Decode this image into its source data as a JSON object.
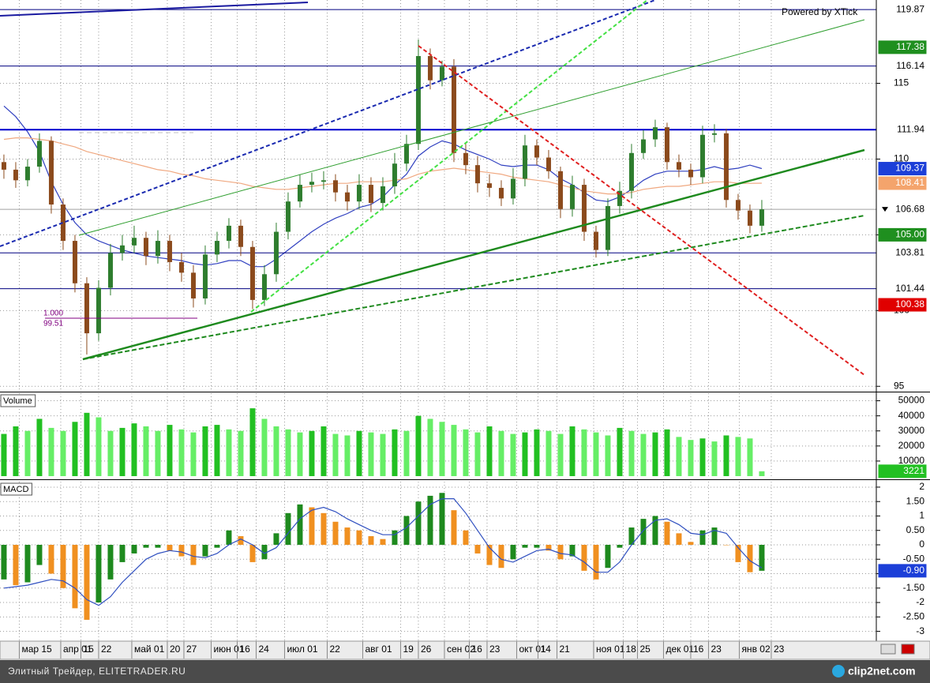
{
  "chart_data": [
    {
      "type": "candlestick",
      "watermark": "Powered by XTick",
      "x": [
        0,
        1,
        2,
        3,
        4,
        5,
        6,
        7,
        8,
        9,
        10,
        11,
        12,
        13,
        14,
        15,
        16,
        17,
        18,
        19,
        20,
        21,
        22,
        23,
        24,
        25,
        26,
        27,
        28,
        29,
        30,
        31,
        32,
        33,
        34,
        35,
        36,
        37,
        38,
        39,
        40,
        41,
        42,
        43,
        44,
        45,
        46,
        47,
        48,
        49,
        50,
        51,
        52,
        53,
        54,
        55,
        56,
        57,
        58,
        59,
        60,
        61,
        62,
        63,
        64
      ],
      "open": [
        109.8,
        109.3,
        108.6,
        109.5,
        111.2,
        107.0,
        104.6,
        101.8,
        98.5,
        101.5,
        103.8,
        104.3,
        104.8,
        103.6,
        104.6,
        103.2,
        102.5,
        100.8,
        103.7,
        104.6,
        105.6,
        104.2,
        100.7,
        102.4,
        105.2,
        107.2,
        108.3,
        108.5,
        108.6,
        107.8,
        107.2,
        108.3,
        107.1,
        108.2,
        109.7,
        111.0,
        116.8,
        115.2,
        116.1,
        110.4,
        109.6,
        108.4,
        108.1,
        107.4,
        108.7,
        110.9,
        110.1,
        109.2,
        106.7,
        108.3,
        105.2,
        104.0,
        106.9,
        107.9,
        110.4,
        111.3,
        112.1,
        109.8,
        109.3,
        108.8,
        111.6,
        111.7,
        107.3,
        106.6,
        105.6
      ],
      "high": [
        110.3,
        109.8,
        110.0,
        111.7,
        111.5,
        107.4,
        105.0,
        102.2,
        102.0,
        104.4,
        105.0,
        105.6,
        105.2,
        105.3,
        105.0,
        103.8,
        103.0,
        104.3,
        105.2,
        106.1,
        106.0,
        104.6,
        103.0,
        105.8,
        107.8,
        109.0,
        109.1,
        109.2,
        109.0,
        108.3,
        109.0,
        108.8,
        108.8,
        110.4,
        111.6,
        117.9,
        117.3,
        116.5,
        116.6,
        111.0,
        110.2,
        109.0,
        108.6,
        109.4,
        111.6,
        111.3,
        110.6,
        109.5,
        108.9,
        108.7,
        105.6,
        107.4,
        108.5,
        111.0,
        111.9,
        112.6,
        112.4,
        110.3,
        109.7,
        112.2,
        112.3,
        112.0,
        107.7,
        107.0,
        107.3
      ],
      "low": [
        108.7,
        108.1,
        108.2,
        109.1,
        106.4,
        104.0,
        101.2,
        97.1,
        98.0,
        101.0,
        103.3,
        103.8,
        103.0,
        103.1,
        102.6,
        101.9,
        100.2,
        100.4,
        103.2,
        104.1,
        103.6,
        100.1,
        100.3,
        101.9,
        104.7,
        106.8,
        107.8,
        108.0,
        107.2,
        106.6,
        106.7,
        106.5,
        106.6,
        107.7,
        109.2,
        110.6,
        114.6,
        114.8,
        109.8,
        109.0,
        107.8,
        107.5,
        106.9,
        107.0,
        108.2,
        109.6,
        108.7,
        106.1,
        106.2,
        104.6,
        103.5,
        103.6,
        106.4,
        107.4,
        110.0,
        110.8,
        109.3,
        108.8,
        108.3,
        108.4,
        111.1,
        106.8,
        106.0,
        105.1,
        105.2
      ],
      "close": [
        109.3,
        108.6,
        109.5,
        111.2,
        107.0,
        104.6,
        101.8,
        98.5,
        101.5,
        103.8,
        104.3,
        104.8,
        103.6,
        104.6,
        103.2,
        102.5,
        100.8,
        103.7,
        104.6,
        105.6,
        104.2,
        100.7,
        102.4,
        105.2,
        107.2,
        108.3,
        108.5,
        108.6,
        107.8,
        107.2,
        108.3,
        107.1,
        108.2,
        109.7,
        111.0,
        116.8,
        115.2,
        116.1,
        110.4,
        109.6,
        108.4,
        108.1,
        107.4,
        108.7,
        110.9,
        110.1,
        109.2,
        106.7,
        108.3,
        105.2,
        104.0,
        106.9,
        107.9,
        110.4,
        111.3,
        112.1,
        109.8,
        109.3,
        108.8,
        111.6,
        111.7,
        107.3,
        106.6,
        105.6,
        106.68
      ],
      "up_color": "#2e7d2e",
      "down_color": "#8b4a1c",
      "overlays": [
        {
          "color": "#3040c0",
          "values": [
            113.5,
            112.8,
            111.8,
            110.5,
            108.5,
            107.0,
            105.8,
            105.0,
            104.6,
            104.3,
            104.0,
            103.8,
            103.6,
            103.5,
            103.4,
            103.3,
            103.1,
            103.0,
            103.1,
            103.3,
            103.3,
            102.9,
            102.9,
            103.4,
            104.0,
            104.6,
            105.2,
            105.7,
            106.1,
            106.4,
            106.8,
            107.0,
            107.5,
            108.3,
            109.0,
            110.2,
            110.8,
            111.2,
            111.0,
            110.6,
            110.3,
            110.0,
            109.6,
            109.5,
            109.6,
            109.6,
            109.3,
            108.7,
            108.3,
            107.8,
            107.3,
            107.2,
            107.5,
            108.0,
            108.6,
            109.0,
            109.2,
            109.2,
            109.2,
            109.3,
            109.5,
            109.3,
            109.4,
            109.6,
            109.37
          ]
        },
        {
          "color": "#f0a880",
          "values": [
            111.3,
            111.4,
            111.4,
            111.3,
            111.2,
            111.0,
            110.8,
            110.5,
            110.3,
            110.1,
            109.9,
            109.7,
            109.5,
            109.3,
            109.2,
            109.0,
            108.9,
            108.7,
            108.6,
            108.5,
            108.4,
            108.2,
            108.1,
            108.0,
            108.0,
            108.1,
            108.2,
            108.3,
            108.4,
            108.4,
            108.5,
            108.5,
            108.5,
            108.6,
            108.7,
            109.0,
            109.2,
            109.3,
            109.4,
            109.3,
            109.2,
            109.1,
            109.0,
            108.8,
            108.7,
            108.6,
            108.5,
            108.3,
            108.1,
            107.9,
            107.8,
            107.7,
            107.7,
            107.8,
            108.0,
            108.1,
            108.2,
            108.2,
            108.3,
            108.4,
            108.5,
            108.5,
            108.4,
            108.4,
            108.41
          ]
        }
      ],
      "xlim": [
        -0.33,
        73.67
      ],
      "xticks": [
        {
          "value": 1.3,
          "label": "мар 15"
        },
        {
          "value": 4.8,
          "label": "апр 01"
        },
        {
          "value": 6.5,
          "label": "15"
        },
        {
          "value": 8,
          "label": "22"
        },
        {
          "value": 10.8,
          "label": "май 01"
        },
        {
          "value": 13.8,
          "label": "20"
        },
        {
          "value": 15.2,
          "label": "27"
        },
        {
          "value": 17.5,
          "label": "июн 01"
        },
        {
          "value": 19.7,
          "label": "16"
        },
        {
          "value": 21.3,
          "label": "24"
        },
        {
          "value": 23.7,
          "label": "июл 01"
        },
        {
          "value": 27.3,
          "label": "22"
        },
        {
          "value": 30.3,
          "label": "авг 01"
        },
        {
          "value": 33.5,
          "label": "19"
        },
        {
          "value": 35,
          "label": "26"
        },
        {
          "value": 37.2,
          "label": "сен 02"
        },
        {
          "value": 39.3,
          "label": "16"
        },
        {
          "value": 40.8,
          "label": "23"
        },
        {
          "value": 43.3,
          "label": "окт 01"
        },
        {
          "value": 45.1,
          "label": "14"
        },
        {
          "value": 46.7,
          "label": "21"
        },
        {
          "value": 49.8,
          "label": "ноя 01"
        },
        {
          "value": 52.3,
          "label": "18"
        },
        {
          "value": 53.5,
          "label": "25"
        },
        {
          "value": 55.7,
          "label": "дек 01"
        },
        {
          "value": 58,
          "label": "16"
        },
        {
          "value": 59.5,
          "label": "23"
        },
        {
          "value": 62.1,
          "label": "янв 02"
        },
        {
          "value": 64.8,
          "label": "23"
        }
      ],
      "ylim": [
        94.7,
        120.5
      ],
      "yticks": [
        95,
        100,
        105,
        110,
        115
      ],
      "grid": true,
      "levels": [
        {
          "value": 119.87,
          "bg": "#ffffff",
          "fg": "#000000",
          "line": "#000080",
          "line_width": 1
        },
        {
          "value": 117.38,
          "bg": "#1f8f1f",
          "fg": "#ffffff"
        },
        {
          "value": 116.14,
          "bg": "#ffffff",
          "fg": "#000000",
          "line": "#000080",
          "line_width": 1
        },
        {
          "value": 111.94,
          "bg": "#ffffff",
          "fg": "#000000",
          "line": "#0000cd",
          "line_width": 2
        },
        {
          "value": 109.37,
          "bg": "#1c3fd8",
          "fg": "#ffffff"
        },
        {
          "value": 108.41,
          "bg": "#f4a46c",
          "fg": "#ffffff"
        },
        {
          "value": 106.68,
          "bg": "#ffffff",
          "fg": "#000000",
          "line": "#a0a0a0",
          "line_width": 1,
          "current": true
        },
        {
          "value": 105,
          "label": "105.00",
          "bg": "#1f8f1f",
          "fg": "#ffffff"
        },
        {
          "value": 103.81,
          "bg": "#ffffff",
          "fg": "#000000",
          "line": "#000080",
          "line_width": 1
        },
        {
          "value": 101.44,
          "bg": "#ffffff",
          "fg": "#000000",
          "line": "#000080",
          "line_width": 1
        },
        {
          "value": 100.38,
          "bg": "#e00000",
          "fg": "#ffffff"
        }
      ],
      "fib_labels": [
        {
          "value": 1,
          "label": "1.000"
        },
        99.51
      ]
    },
    {
      "type": "volume",
      "title": "Volume",
      "x": [
        0,
        1,
        2,
        3,
        4,
        5,
        6,
        7,
        8,
        9,
        10,
        11,
        12,
        13,
        14,
        15,
        16,
        17,
        18,
        19,
        20,
        21,
        22,
        23,
        24,
        25,
        26,
        27,
        28,
        29,
        30,
        31,
        32,
        33,
        34,
        35,
        36,
        37,
        38,
        39,
        40,
        41,
        42,
        43,
        44,
        45,
        46,
        47,
        48,
        49,
        50,
        51,
        52,
        53,
        54,
        55,
        56,
        57,
        58,
        59,
        60,
        61,
        62,
        63,
        64
      ],
      "values": [
        28000,
        33000,
        30000,
        38000,
        32000,
        30000,
        36000,
        42000,
        39000,
        30000,
        32000,
        35000,
        33000,
        30000,
        34000,
        31000,
        29000,
        33000,
        34000,
        31000,
        30000,
        45000,
        38000,
        33000,
        31000,
        29000,
        30000,
        33000,
        28000,
        27000,
        30000,
        29000,
        28000,
        31000,
        30000,
        40000,
        38000,
        36000,
        34000,
        31000,
        29000,
        33000,
        30000,
        28000,
        29000,
        31000,
        30000,
        28000,
        33000,
        31000,
        29000,
        27000,
        32000,
        30000,
        28000,
        29000,
        31000,
        26000,
        24000,
        25000,
        23000,
        27000,
        26000,
        25000,
        3221
      ],
      "up_color": "#22c022",
      "down_color": "#66ee66",
      "tag_bg": "#22c022",
      "ylim": [
        0,
        55000
      ],
      "yticks": [
        10000,
        20000,
        30000,
        40000,
        50000
      ],
      "grid": true
    },
    {
      "type": "macd",
      "title": "MACD",
      "x": [
        0,
        1,
        2,
        3,
        4,
        5,
        6,
        7,
        8,
        9,
        10,
        11,
        12,
        13,
        14,
        15,
        16,
        17,
        18,
        19,
        20,
        21,
        22,
        23,
        24,
        25,
        26,
        27,
        28,
        29,
        30,
        31,
        32,
        33,
        34,
        35,
        36,
        37,
        38,
        39,
        40,
        41,
        42,
        43,
        44,
        45,
        46,
        47,
        48,
        49,
        50,
        51,
        52,
        53,
        54,
        55,
        56,
        57,
        58,
        59,
        60,
        61,
        62,
        63,
        64
      ],
      "histogram": [
        -1.2,
        -1.4,
        -1.3,
        -0.7,
        -1.0,
        -1.5,
        -2.2,
        -2.6,
        -2.0,
        -1.2,
        -0.6,
        -0.3,
        -0.1,
        -0.1,
        -0.2,
        -0.4,
        -0.7,
        -0.4,
        -0.1,
        0.5,
        0.3,
        -0.6,
        -0.5,
        0.4,
        1.1,
        1.4,
        1.3,
        1.1,
        0.8,
        0.6,
        0.5,
        0.3,
        0.2,
        0.5,
        1.0,
        1.5,
        1.7,
        1.8,
        1.2,
        0.5,
        -0.3,
        -0.7,
        -0.8,
        -0.5,
        -0.1,
        -0.1,
        -0.2,
        -0.5,
        -0.4,
        -0.9,
        -1.2,
        -0.8,
        -0.1,
        0.6,
        0.9,
        1.0,
        0.8,
        0.4,
        0.1,
        0.5,
        0.6,
        0.0,
        -0.6,
        -0.95,
        -0.9
      ],
      "signal": [
        -1.5,
        -1.45,
        -1.4,
        -1.3,
        -1.2,
        -1.25,
        -1.5,
        -1.9,
        -2.1,
        -1.8,
        -1.3,
        -0.9,
        -0.5,
        -0.3,
        -0.2,
        -0.25,
        -0.4,
        -0.45,
        -0.3,
        0.0,
        0.2,
        0.0,
        -0.3,
        -0.1,
        0.4,
        0.9,
        1.2,
        1.3,
        1.15,
        0.9,
        0.7,
        0.5,
        0.35,
        0.35,
        0.6,
        1.0,
        1.4,
        1.6,
        1.6,
        1.1,
        0.5,
        -0.1,
        -0.5,
        -0.6,
        -0.4,
        -0.2,
        -0.15,
        -0.3,
        -0.35,
        -0.6,
        -0.95,
        -0.95,
        -0.6,
        0.0,
        0.5,
        0.85,
        0.9,
        0.7,
        0.4,
        0.35,
        0.5,
        0.4,
        -0.1,
        -0.55,
        -0.8
      ],
      "up_color": "#1e8a1e",
      "down_color": "#f09020",
      "signal_color": "#3050c0",
      "tag": {
        "value": -0.9,
        "label": "-0.90",
        "bg": "#1c3fd8",
        "fg": "#ffffff"
      },
      "ylim": [
        -3.34,
        2.19
      ],
      "yticks": [
        -3,
        {
          "value": -2.5,
          "label": "-2.50"
        },
        -2,
        {
          "value": -1.5,
          "label": "-1.50"
        },
        -1,
        {
          "value": -0.5,
          "label": "-0.50"
        },
        0,
        {
          "value": 0.5,
          "label": "0.50"
        },
        1,
        {
          "value": 1.5,
          "label": "1.50"
        },
        2
      ],
      "grid": true
    }
  ],
  "footer": {
    "text": "Элитный Трейдер, ELITETRADER.RU",
    "logo": "clip2net.com"
  }
}
